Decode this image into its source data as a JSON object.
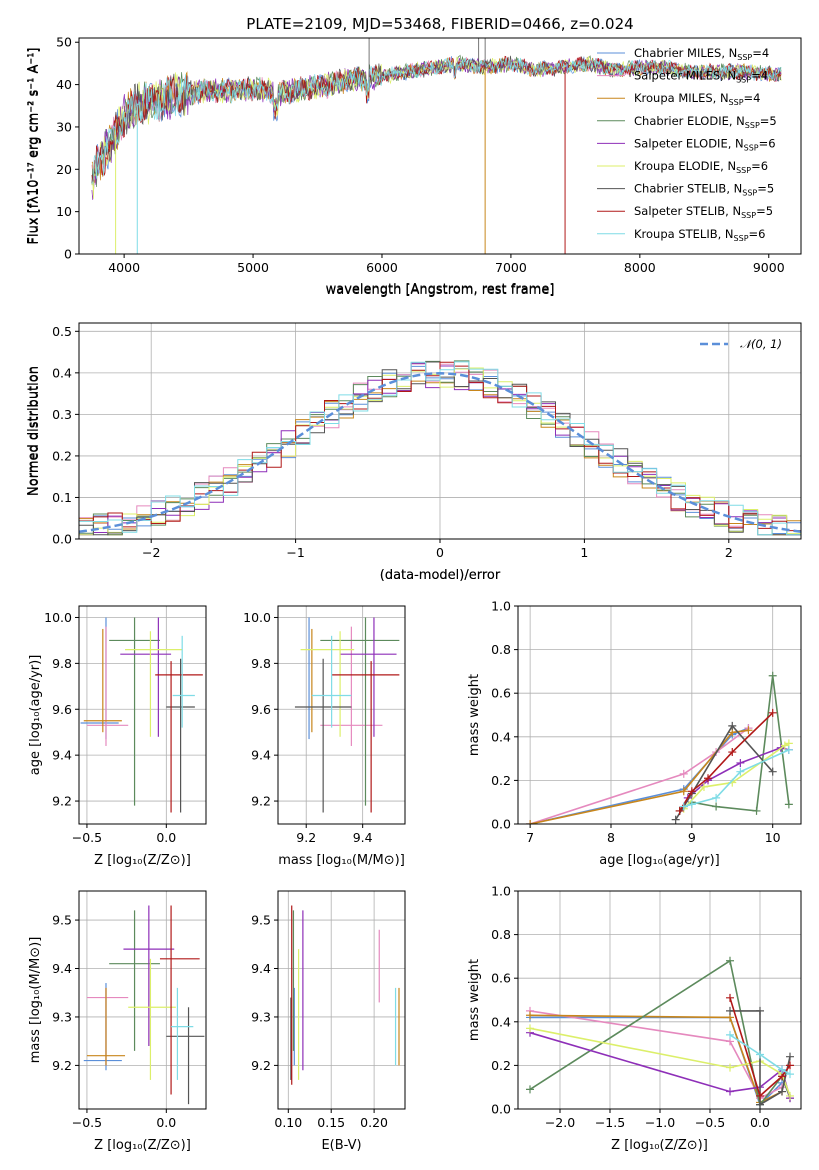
{
  "colors": {
    "Chabrier MILES": "#5b8fd9",
    "Salpeter MILES": "#e589be",
    "Kroupa MILES": "#c8861c",
    "Chabrier ELODIE": "#5c8a5c",
    "Salpeter ELODIE": "#8e2fb8",
    "Kroupa ELODIE": "#dcef6a",
    "Chabrier STELIB": "#555555",
    "Salpeter STELIB": "#b01818",
    "Kroupa STELIB": "#7fdce6",
    "gaussian": "#5b8fd9",
    "grid": "#b0b0b0"
  },
  "chart_data": [
    {
      "id": "spectrum",
      "type": "line",
      "title": "PLATE=2109, MJD=53468, FIBERID=0466, z=0.024",
      "xlabel": "wavelength [Angstrom, rest frame]",
      "ylabel": "Flux [fλ10⁻¹⁷ erg cm⁻² s⁻¹ A⁻¹]",
      "xlim": [
        3650,
        9250
      ],
      "ylim": [
        0,
        51
      ],
      "xticks": [
        "4000",
        "5000",
        "6000",
        "7000",
        "8000",
        "9000"
      ],
      "yticks": [
        "0",
        "10",
        "20",
        "30",
        "40",
        "50"
      ],
      "grid": false,
      "legend_position": "top-right",
      "legend": [
        "Chabrier MILES, N_SSP=4",
        "Salpeter MILES, N_SSP=4",
        "Kroupa MILES, N_SSP=4",
        "Chabrier ELODIE, N_SSP=5",
        "Salpeter ELODIE, N_SSP=6",
        "Kroupa ELODIE, N_SSP=6",
        "Chabrier STELIB, N_SSP=5",
        "Salpeter STELIB, N_SSP=5",
        "Kroupa STELIB, N_SSP=6"
      ],
      "legend_parts": [
        {
          "base": "Chabrier MILES, N",
          "sub": "SSP",
          "tail": "=4"
        },
        {
          "base": "Salpeter MILES, N",
          "sub": "SSP",
          "tail": "=4"
        },
        {
          "base": "Kroupa MILES, N",
          "sub": "SSP",
          "tail": "=4"
        },
        {
          "base": "Chabrier ELODIE, N",
          "sub": "SSP",
          "tail": "=5"
        },
        {
          "base": "Salpeter ELODIE, N",
          "sub": "SSP",
          "tail": "=6"
        },
        {
          "base": "Kroupa ELODIE, N",
          "sub": "SSP",
          "tail": "=6"
        },
        {
          "base": "Chabrier STELIB, N",
          "sub": "SSP",
          "tail": "=5"
        },
        {
          "base": "Salpeter STELIB, N",
          "sub": "SSP",
          "tail": "=5"
        },
        {
          "base": "Kroupa STELIB, N",
          "sub": "SSP",
          "tail": "=6"
        }
      ],
      "continuum": {
        "x": [
          3750,
          3800,
          3850,
          3900,
          3950,
          4000,
          4100,
          4200,
          4400,
          4600,
          4800,
          5000,
          5200,
          5400,
          5600,
          5800,
          6000,
          6200,
          6400,
          6600,
          6800,
          7000,
          7200,
          7400,
          7600,
          7800,
          8000,
          8200,
          8400,
          8600,
          8800,
          9000,
          9100
        ],
        "y": [
          17,
          22,
          24,
          26,
          29,
          33,
          35,
          36,
          37.5,
          38.5,
          38.5,
          39,
          38,
          39,
          40,
          41.5,
          42,
          43,
          44,
          45,
          44,
          45,
          43.5,
          44,
          45,
          43.5,
          44,
          44,
          43,
          43,
          43,
          42.5,
          42.5
        ]
      },
      "dips": [
        {
          "x": 3934,
          "y": 0
        },
        {
          "x": 4102,
          "y": 0
        },
        {
          "x": 6800,
          "y": 0
        },
        {
          "x": 7420,
          "y": 0
        }
      ]
    },
    {
      "id": "residuals",
      "type": "line",
      "xlabel": "(data-model)/error",
      "ylabel": "Normed distribution",
      "xlim": [
        -2.5,
        2.5
      ],
      "ylim": [
        0,
        0.52
      ],
      "xticks": [
        "−2",
        "−1",
        "0",
        "1",
        "2"
      ],
      "yticks": [
        "0.0",
        "0.1",
        "0.2",
        "0.3",
        "0.4",
        "0.5"
      ],
      "grid": true,
      "legend_position": "top-right",
      "legend": [
        "N(0,1)"
      ],
      "legend_parts": [
        {
          "base": "𝒩(0, 1)",
          "sub": "",
          "tail": ""
        }
      ],
      "gaussian": {
        "mu": 0,
        "sigma": 1
      }
    },
    {
      "id": "age_vs_Z",
      "type": "scatter",
      "xlabel": "Z [log₁₀(Z/Z⊙)]",
      "ylabel": "age  [log₁₀(age/yr)]",
      "xlim": [
        -0.55,
        0.25
      ],
      "ylim": [
        9.1,
        10.05
      ],
      "xticks": [
        "−0.5",
        "0.0"
      ],
      "yticks": [
        "9.2",
        "9.4",
        "9.6",
        "9.8",
        "10.0"
      ],
      "grid": true,
      "points": [
        {
          "model": "Chabrier MILES",
          "x": -0.38,
          "xerr": [
            0.16,
            0.08
          ],
          "y": 9.54,
          "yerr": [
            0.07,
            0.46
          ]
        },
        {
          "model": "Salpeter MILES",
          "x": -0.38,
          "xerr": [
            0.12,
            0.14
          ],
          "y": 9.53,
          "yerr": [
            0.09,
            0.43
          ]
        },
        {
          "model": "Kroupa MILES",
          "x": -0.4,
          "xerr": [
            0.12,
            0.12
          ],
          "y": 9.55,
          "yerr": [
            0.05,
            0.4
          ]
        },
        {
          "model": "Chabrier ELODIE",
          "x": -0.2,
          "xerr": [
            0.16,
            0.16
          ],
          "y": 9.9,
          "yerr": [
            0.72,
            0.1
          ]
        },
        {
          "model": "Salpeter ELODIE",
          "x": -0.05,
          "xerr": [
            0.24,
            0.08
          ],
          "y": 9.84,
          "yerr": [
            0.36,
            0.16
          ]
        },
        {
          "model": "Kroupa ELODIE",
          "x": -0.1,
          "xerr": [
            0.16,
            0.2
          ],
          "y": 9.86,
          "yerr": [
            0.38,
            0.08
          ]
        },
        {
          "model": "Chabrier STELIB",
          "x": 0.09,
          "xerr": [
            0.09,
            0.09
          ],
          "y": 9.61,
          "yerr": [
            0.46,
            0.21
          ]
        },
        {
          "model": "Salpeter STELIB",
          "x": 0.03,
          "xerr": [
            0.1,
            0.2
          ],
          "y": 9.75,
          "yerr": [
            0.6,
            0.06
          ]
        },
        {
          "model": "Kroupa STELIB",
          "x": 0.1,
          "xerr": [
            0.06,
            0.08
          ],
          "y": 9.66,
          "yerr": [
            0.14,
            0.26
          ]
        }
      ]
    },
    {
      "id": "age_vs_mass",
      "type": "scatter",
      "xlabel": "mass [log₁₀(M/M⊙)]",
      "xlim": [
        9.1,
        9.55
      ],
      "ylim": [
        9.1,
        10.05
      ],
      "xticks": [
        "9.2",
        "9.4"
      ],
      "yticks": [
        "9.2",
        "9.4",
        "9.6",
        "9.8",
        "10.0"
      ],
      "grid": true,
      "points": [
        {
          "model": "Chabrier MILES",
          "x": 9.21,
          "xerr": [
            0,
            0
          ],
          "y": 9.54,
          "yerr": [
            0.07,
            0.46
          ]
        },
        {
          "model": "Salpeter MILES",
          "x": 9.36,
          "xerr": [
            0.11,
            0.11
          ],
          "y": 9.53,
          "yerr": [
            0.09,
            0.43
          ]
        },
        {
          "model": "Kroupa MILES",
          "x": 9.22,
          "xerr": [
            0,
            0
          ],
          "y": 9.55,
          "yerr": [
            0.05,
            0.4
          ]
        },
        {
          "model": "Chabrier ELODIE",
          "x": 9.41,
          "xerr": [
            0.16,
            0.12
          ],
          "y": 9.9,
          "yerr": [
            0.72,
            0.1
          ]
        },
        {
          "model": "Salpeter ELODIE",
          "x": 9.44,
          "xerr": [
            0.12,
            0.08
          ],
          "y": 9.84,
          "yerr": [
            0.36,
            0.16
          ]
        },
        {
          "model": "Kroupa ELODIE",
          "x": 9.32,
          "xerr": [
            0.14,
            0.05
          ],
          "y": 9.86,
          "yerr": [
            0.38,
            0.08
          ]
        },
        {
          "model": "Chabrier STELIB",
          "x": 9.26,
          "xerr": [
            0.1,
            0.1
          ],
          "y": 9.61,
          "yerr": [
            0.46,
            0.21
          ]
        },
        {
          "model": "Salpeter STELIB",
          "x": 9.43,
          "xerr": [
            0.14,
            0.1
          ],
          "y": 9.75,
          "yerr": [
            0.6,
            0.06
          ]
        },
        {
          "model": "Kroupa STELIB",
          "x": 9.29,
          "xerr": [
            0.07,
            0.07
          ],
          "y": 9.66,
          "yerr": [
            0.14,
            0.26
          ]
        }
      ]
    },
    {
      "id": "massweight_vs_age",
      "type": "line",
      "xlabel": "age  [log₁₀(age/yr)]",
      "ylabel": "mass weight",
      "xlim": [
        6.85,
        10.35
      ],
      "ylim": [
        0,
        1.0
      ],
      "xticks": [
        "7",
        "8",
        "9",
        "10"
      ],
      "yticks": [
        "0.0",
        "0.2",
        "0.4",
        "0.6",
        "0.8",
        "1.0"
      ],
      "grid": true,
      "series": [
        {
          "model": "Chabrier MILES",
          "x": [
            7.0,
            8.9,
            9.5,
            9.7
          ],
          "y": [
            0.0,
            0.16,
            0.41,
            0.44
          ]
        },
        {
          "model": "Salpeter MILES",
          "x": [
            7.0,
            8.9,
            9.3,
            9.7
          ],
          "y": [
            0.0,
            0.23,
            0.33,
            0.44
          ]
        },
        {
          "model": "Kroupa MILES",
          "x": [
            7.0,
            8.9,
            9.5,
            9.7
          ],
          "y": [
            0.0,
            0.15,
            0.42,
            0.43
          ]
        },
        {
          "model": "Chabrier ELODIE",
          "x": [
            8.85,
            9.0,
            9.3,
            9.8,
            10.0,
            10.2
          ],
          "y": [
            0.06,
            0.1,
            0.08,
            0.06,
            0.68,
            0.09
          ]
        },
        {
          "model": "Salpeter ELODIE",
          "x": [
            8.95,
            9.2,
            9.6,
            10.1,
            10.2
          ],
          "y": [
            0.12,
            0.2,
            0.28,
            0.35,
            0.34
          ]
        },
        {
          "model": "Kroupa ELODIE",
          "x": [
            8.9,
            9.15,
            9.5,
            10.15,
            10.2
          ],
          "y": [
            0.07,
            0.17,
            0.19,
            0.36,
            0.37
          ]
        },
        {
          "model": "Chabrier STELIB",
          "x": [
            8.8,
            8.9,
            9.0,
            9.5,
            10.0
          ],
          "y": [
            0.02,
            0.08,
            0.14,
            0.45,
            0.24
          ]
        },
        {
          "model": "Salpeter STELIB",
          "x": [
            8.85,
            9.0,
            9.2,
            9.5,
            10.0
          ],
          "y": [
            0.06,
            0.15,
            0.21,
            0.33,
            0.51
          ]
        },
        {
          "model": "Kroupa STELIB",
          "x": [
            8.9,
            9.0,
            9.3,
            9.6,
            10.2
          ],
          "y": [
            0.08,
            0.09,
            0.12,
            0.24,
            0.34
          ]
        }
      ]
    },
    {
      "id": "mass_vs_Z",
      "type": "scatter",
      "xlabel": "Z [log₁₀(Z/Z⊙)]",
      "ylabel": "mass [log₁₀(M/M⊙)]",
      "xlim": [
        -0.55,
        0.25
      ],
      "ylim": [
        9.11,
        9.56
      ],
      "xticks": [
        "−0.5",
        "0.0"
      ],
      "yticks": [
        "9.2",
        "9.3",
        "9.4",
        "9.5"
      ],
      "grid": true,
      "points": [
        {
          "model": "Chabrier MILES",
          "x": -0.38,
          "xerr": [
            0.14,
            0.1
          ],
          "y": 9.21,
          "yerr": [
            0.02,
            0.16
          ]
        },
        {
          "model": "Salpeter MILES",
          "x": -0.38,
          "xerr": [
            0.12,
            0.14
          ],
          "y": 9.34,
          "yerr": [
            0.14,
            0.02
          ]
        },
        {
          "model": "Kroupa MILES",
          "x": -0.38,
          "xerr": [
            0.12,
            0.12
          ],
          "y": 9.22,
          "yerr": [
            0.02,
            0.14
          ]
        },
        {
          "model": "Chabrier ELODIE",
          "x": -0.2,
          "xerr": [
            0.16,
            0.16
          ],
          "y": 9.41,
          "yerr": [
            0.18,
            0.11
          ]
        },
        {
          "model": "Salpeter ELODIE",
          "x": -0.11,
          "xerr": [
            0.16,
            0.16
          ],
          "y": 9.44,
          "yerr": [
            0.2,
            0.09
          ]
        },
        {
          "model": "Kroupa ELODIE",
          "x": -0.1,
          "xerr": [
            0.14,
            0.16
          ],
          "y": 9.32,
          "yerr": [
            0.15,
            0.1
          ]
        },
        {
          "model": "Chabrier STELIB",
          "x": 0.14,
          "xerr": [
            0.14,
            0.1
          ],
          "y": 9.26,
          "yerr": [
            0.14,
            0.06
          ]
        },
        {
          "model": "Salpeter STELIB",
          "x": 0.03,
          "xerr": [
            0.07,
            0.18
          ],
          "y": 9.42,
          "yerr": [
            0.28,
            0.11
          ]
        },
        {
          "model": "Kroupa STELIB",
          "x": 0.07,
          "xerr": [
            0.04,
            0.1
          ],
          "y": 9.28,
          "yerr": [
            0.11,
            0.08
          ]
        }
      ]
    },
    {
      "id": "mass_vs_EBV",
      "type": "scatter",
      "xlabel": "E(B-V)",
      "xlim": [
        0.088,
        0.236
      ],
      "ylim": [
        9.11,
        9.56
      ],
      "xticks": [
        "0.10",
        "0.15",
        "0.20"
      ],
      "yticks": [
        "9.2",
        "9.3",
        "9.4",
        "9.5"
      ],
      "grid": true,
      "points": [
        {
          "model": "Chabrier MILES",
          "x": 0.107,
          "y": 9.21,
          "yerr": [
            0.01,
            0.15
          ]
        },
        {
          "model": "Salpeter MILES",
          "x": 0.206,
          "y": 9.4,
          "yerr": [
            0.07,
            0.08
          ]
        },
        {
          "model": "Kroupa MILES",
          "x": 0.229,
          "y": 9.28,
          "yerr": [
            0.08,
            0.08
          ]
        },
        {
          "model": "Chabrier ELODIE",
          "x": 0.106,
          "y": 9.41,
          "yerr": [
            0.18,
            0.11
          ]
        },
        {
          "model": "Salpeter ELODIE",
          "x": 0.117,
          "y": 9.44,
          "yerr": [
            0.25,
            0.08
          ]
        },
        {
          "model": "Kroupa ELODIE",
          "x": 0.112,
          "y": 9.33,
          "yerr": [
            0.16,
            0.11
          ]
        },
        {
          "model": "Chabrier STELIB",
          "x": 0.103,
          "y": 9.27,
          "yerr": [
            0.1,
            0.07
          ]
        },
        {
          "model": "Salpeter STELIB",
          "x": 0.104,
          "y": 9.43,
          "yerr": [
            0.27,
            0.1
          ]
        },
        {
          "model": "Kroupa STELIB",
          "x": 0.225,
          "y": 9.28,
          "yerr": [
            0.08,
            0.08
          ]
        }
      ]
    },
    {
      "id": "massweight_vs_Z",
      "type": "line",
      "xlabel": "Z [log₁₀(Z/Z⊙)]",
      "ylabel": "mass weight",
      "xlim": [
        -2.42,
        0.41
      ],
      "ylim": [
        0,
        1.0
      ],
      "xticks": [
        "−2.0",
        "−1.5",
        "−1.0",
        "−0.5",
        "0.0"
      ],
      "yticks": [
        "0.0",
        "0.2",
        "0.4",
        "0.6",
        "0.8",
        "1.0"
      ],
      "grid": true,
      "series": [
        {
          "model": "Chabrier MILES",
          "x": [
            -2.3,
            -0.3,
            0.0,
            0.22
          ],
          "y": [
            0.42,
            0.42,
            0.02,
            0.12
          ]
        },
        {
          "model": "Salpeter MILES",
          "x": [
            -2.3,
            -0.3,
            0.0,
            0.22
          ],
          "y": [
            0.45,
            0.31,
            0.05,
            0.1
          ]
        },
        {
          "model": "Kroupa MILES",
          "x": [
            -2.3,
            -0.3,
            0.0,
            0.22
          ],
          "y": [
            0.43,
            0.42,
            0.03,
            0.08
          ]
        },
        {
          "model": "Chabrier ELODIE",
          "x": [
            -2.3,
            -0.3,
            0.0,
            0.22,
            0.3
          ],
          "y": [
            0.09,
            0.68,
            0.02,
            0.15,
            0.05
          ]
        },
        {
          "model": "Salpeter ELODIE",
          "x": [
            -2.3,
            -0.3,
            0.0,
            0.22,
            0.3
          ],
          "y": [
            0.35,
            0.08,
            0.1,
            0.18,
            0.05
          ]
        },
        {
          "model": "Kroupa ELODIE",
          "x": [
            -2.3,
            -0.3,
            0.0,
            0.22,
            0.3
          ],
          "y": [
            0.37,
            0.19,
            0.22,
            0.16,
            0.06
          ]
        },
        {
          "model": "Chabrier STELIB",
          "x": [
            -0.3,
            0.0,
            0.0,
            0.22,
            0.3
          ],
          "y": [
            0.45,
            0.45,
            0.02,
            0.08,
            0.24
          ]
        },
        {
          "model": "Salpeter STELIB",
          "x": [
            -0.3,
            0.0,
            0.22,
            0.3
          ],
          "y": [
            0.51,
            0.06,
            0.15,
            0.2
          ]
        },
        {
          "model": "Kroupa STELIB",
          "x": [
            -0.3,
            0.0,
            0.22,
            0.3
          ],
          "y": [
            0.34,
            0.25,
            0.18,
            0.16
          ]
        }
      ]
    }
  ]
}
